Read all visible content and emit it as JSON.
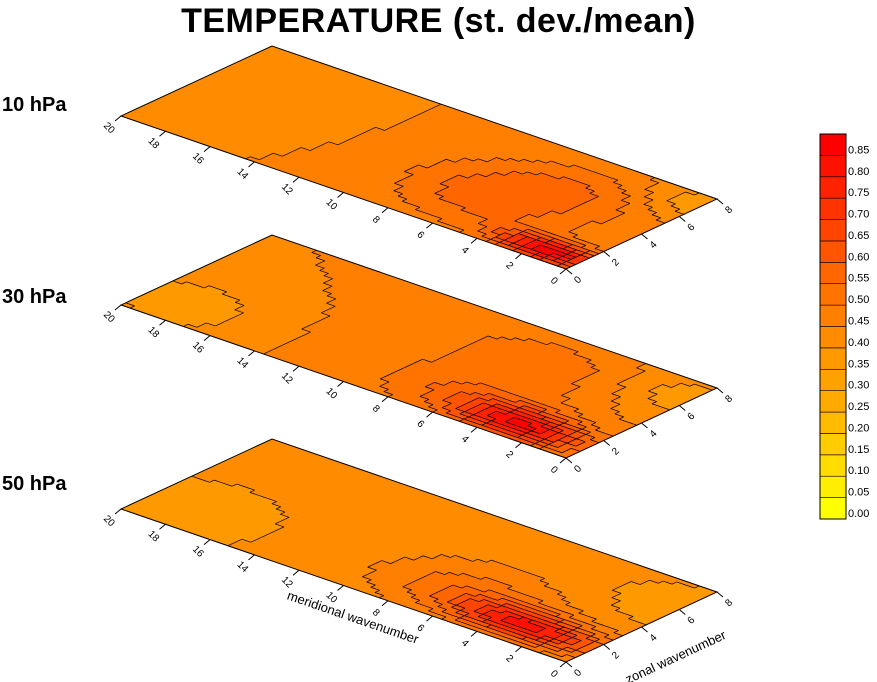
{
  "chart_data": {
    "type": "contour",
    "title": "TEMPERATURE (st. dev./mean)",
    "xlabel": "meridional wavenumber",
    "ylabel": "zonal wavenumber",
    "meridional_ticks": [
      "0",
      "2",
      "4",
      "6",
      "8",
      "10",
      "12",
      "14",
      "16",
      "18",
      "20"
    ],
    "zonal_ticks": [
      "0",
      "2",
      "4",
      "6",
      "8"
    ],
    "colorbar": {
      "min": 0.0,
      "max": 0.9,
      "ticks": [
        "0.00",
        "0.05",
        "0.10",
        "0.15",
        "0.20",
        "0.25",
        "0.30",
        "0.35",
        "0.40",
        "0.45",
        "0.50",
        "0.55",
        "0.60",
        "0.65",
        "0.70",
        "0.75",
        "0.80",
        "0.85"
      ],
      "colors": [
        "#ffff00",
        "#ffee00",
        "#ffdd00",
        "#ffcc00",
        "#ffbb00",
        "#ffaa00",
        "#ffa200",
        "#ff9900",
        "#ff8c00",
        "#ff7f00",
        "#ff7300",
        "#ff6600",
        "#ff5500",
        "#ff4400",
        "#ff3300",
        "#ff2200",
        "#ff1100",
        "#ff0000"
      ]
    },
    "panels": [
      {
        "level": "10 hPa",
        "background_value": 0.45,
        "features": [
          {
            "m": 1.5,
            "z": 0.8,
            "value": 0.88,
            "rm": 2.0,
            "rz": 0.9
          },
          {
            "m": 6.0,
            "z": 3.0,
            "value": 0.58,
            "rm": 3.5,
            "rz": 2.6
          },
          {
            "m": 4.0,
            "z": 5.5,
            "value": 0.53,
            "rm": 3.0,
            "rz": 2.0
          },
          {
            "m": 0.5,
            "z": 7.0,
            "value": 0.37,
            "rm": 2.0,
            "rz": 1.5
          },
          {
            "m": 17.0,
            "z": 4.5,
            "value": 0.4,
            "rm": 2.5,
            "rz": 2.0
          },
          {
            "m": 20.0,
            "z": 1.0,
            "value": 0.4,
            "rm": 2.0,
            "rz": 1.5
          }
        ]
      },
      {
        "level": "30 hPa",
        "background_value": 0.45,
        "features": [
          {
            "m": 3.0,
            "z": 1.2,
            "value": 0.82,
            "rm": 2.5,
            "rz": 1.2
          },
          {
            "m": 6.0,
            "z": 2.0,
            "value": 0.55,
            "rm": 4.0,
            "rz": 2.5
          },
          {
            "m": 6.0,
            "z": 6.0,
            "value": 0.52,
            "rm": 4.0,
            "rz": 2.0
          },
          {
            "m": 0.5,
            "z": 6.5,
            "value": 0.37,
            "rm": 2.5,
            "rz": 2.0
          },
          {
            "m": 18.5,
            "z": 1.5,
            "value": 0.35,
            "rm": 2.5,
            "rz": 2.0
          }
        ]
      },
      {
        "level": "50 hPa",
        "background_value": 0.42,
        "features": [
          {
            "m": 3.0,
            "z": 1.5,
            "value": 0.8,
            "rm": 3.0,
            "rz": 1.2
          },
          {
            "m": 6.5,
            "z": 2.5,
            "value": 0.52,
            "rm": 3.5,
            "rz": 2.3
          },
          {
            "m": 0.5,
            "z": 6.0,
            "value": 0.37,
            "rm": 2.5,
            "rz": 2.0
          },
          {
            "m": 18.0,
            "z": 1.5,
            "value": 0.36,
            "rm": 3.0,
            "rz": 2.5
          },
          {
            "m": 12.0,
            "z": 5.0,
            "value": 0.4,
            "rm": 3.0,
            "rz": 2.0
          }
        ]
      }
    ]
  }
}
